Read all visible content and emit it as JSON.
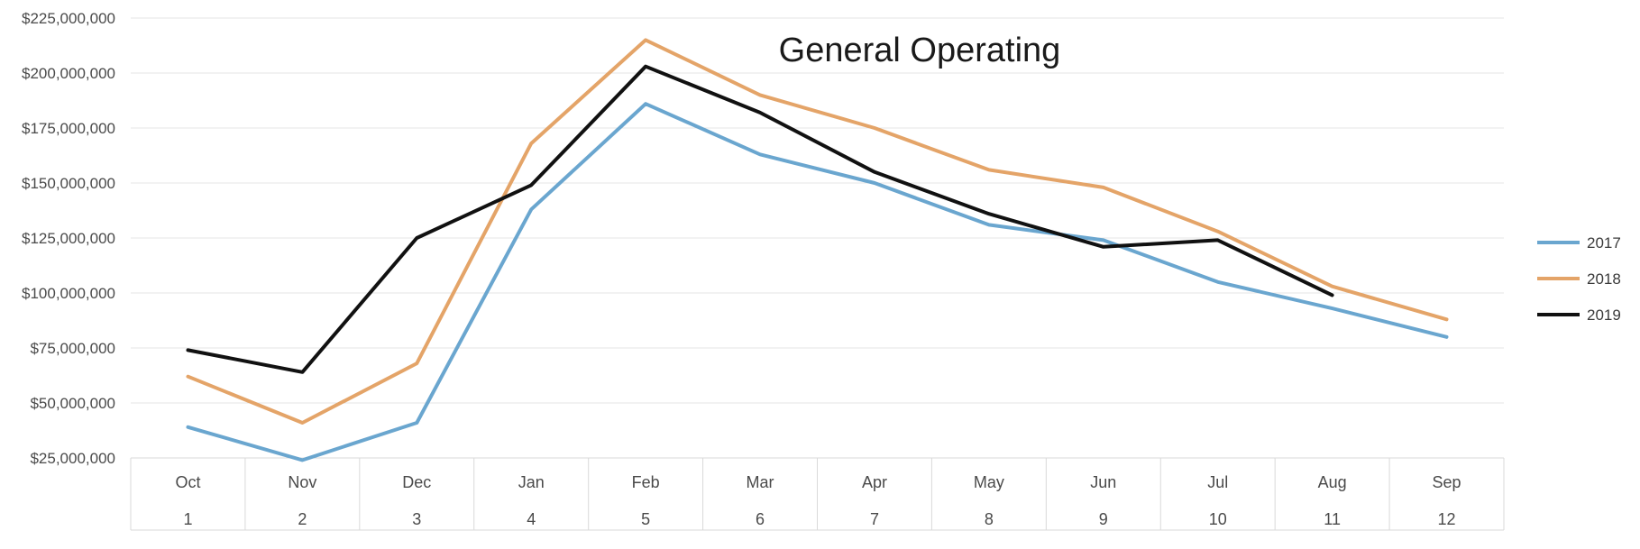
{
  "chart_data": {
    "type": "line",
    "title": "General Operating",
    "categories": [
      "Oct",
      "Nov",
      "Dec",
      "Jan",
      "Feb",
      "Mar",
      "Apr",
      "May",
      "Jun",
      "Jul",
      "Aug",
      "Sep"
    ],
    "category_numbers": [
      "1",
      "2",
      "3",
      "4",
      "5",
      "6",
      "7",
      "8",
      "9",
      "10",
      "11",
      "12"
    ],
    "y_ticks": [
      "$25,000,000",
      "$50,000,000",
      "$75,000,000",
      "$100,000,000",
      "$125,000,000",
      "$150,000,000",
      "$175,000,000",
      "$200,000,000",
      "$225,000,000"
    ],
    "ylim": [
      25000000,
      225000000
    ],
    "ystep": 25000000,
    "grid": true,
    "legend_position": "right",
    "series": [
      {
        "name": "2017",
        "color": "#6aa6cf",
        "values": [
          39000000,
          24000000,
          41000000,
          138000000,
          186000000,
          163000000,
          150000000,
          131000000,
          124000000,
          105000000,
          93000000,
          80000000
        ]
      },
      {
        "name": "2018",
        "color": "#e4a468",
        "values": [
          62000000,
          41000000,
          68000000,
          168000000,
          215000000,
          190000000,
          175000000,
          156000000,
          148000000,
          128000000,
          103000000,
          88000000
        ]
      },
      {
        "name": "2019",
        "color": "#111111",
        "values": [
          74000000,
          64000000,
          125000000,
          149000000,
          203000000,
          182000000,
          155000000,
          136000000,
          121000000,
          124000000,
          99000000,
          null
        ]
      }
    ]
  }
}
